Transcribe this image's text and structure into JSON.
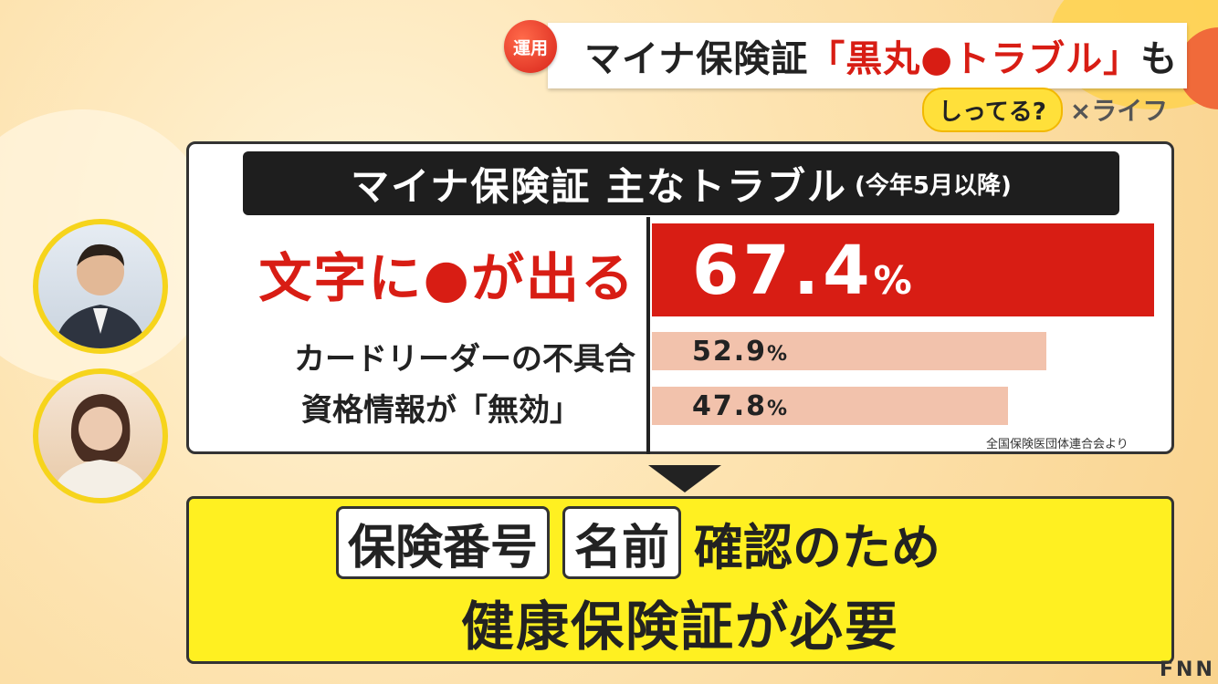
{
  "header": {
    "tag": "運用",
    "title_prefix": "マイナ保険証",
    "title_highlight": "「黒丸●トラブル」",
    "title_suffix": "も",
    "program_logo": "しってる?",
    "program_suffix": "×ライフ"
  },
  "colors": {
    "top_bar": "#d81d14",
    "other_bars": "#f2c2ac",
    "highlight_text": "#d81d14",
    "conclusion_box": "#fff021"
  },
  "chart_data": {
    "type": "bar",
    "orientation": "horizontal",
    "title": "マイナ保険証 主なトラブル",
    "subtitle": "(今年5月以降)",
    "categories": [
      "文字に●が出る",
      "カードリーダーの不具合",
      "資格情報が「無効」"
    ],
    "values": [
      67.4,
      52.9,
      47.8
    ],
    "value_labels": [
      "67.4",
      "52.9",
      "47.8"
    ],
    "unit": "%",
    "xlim": [
      0,
      67.4
    ],
    "source": "全国保険医団体連合会より"
  },
  "conclusion": {
    "chip1": "保険番号",
    "chip2": "名前",
    "line1_rest": "確認のため",
    "line2": "健康保険証が必要"
  },
  "watermark": "FNN"
}
